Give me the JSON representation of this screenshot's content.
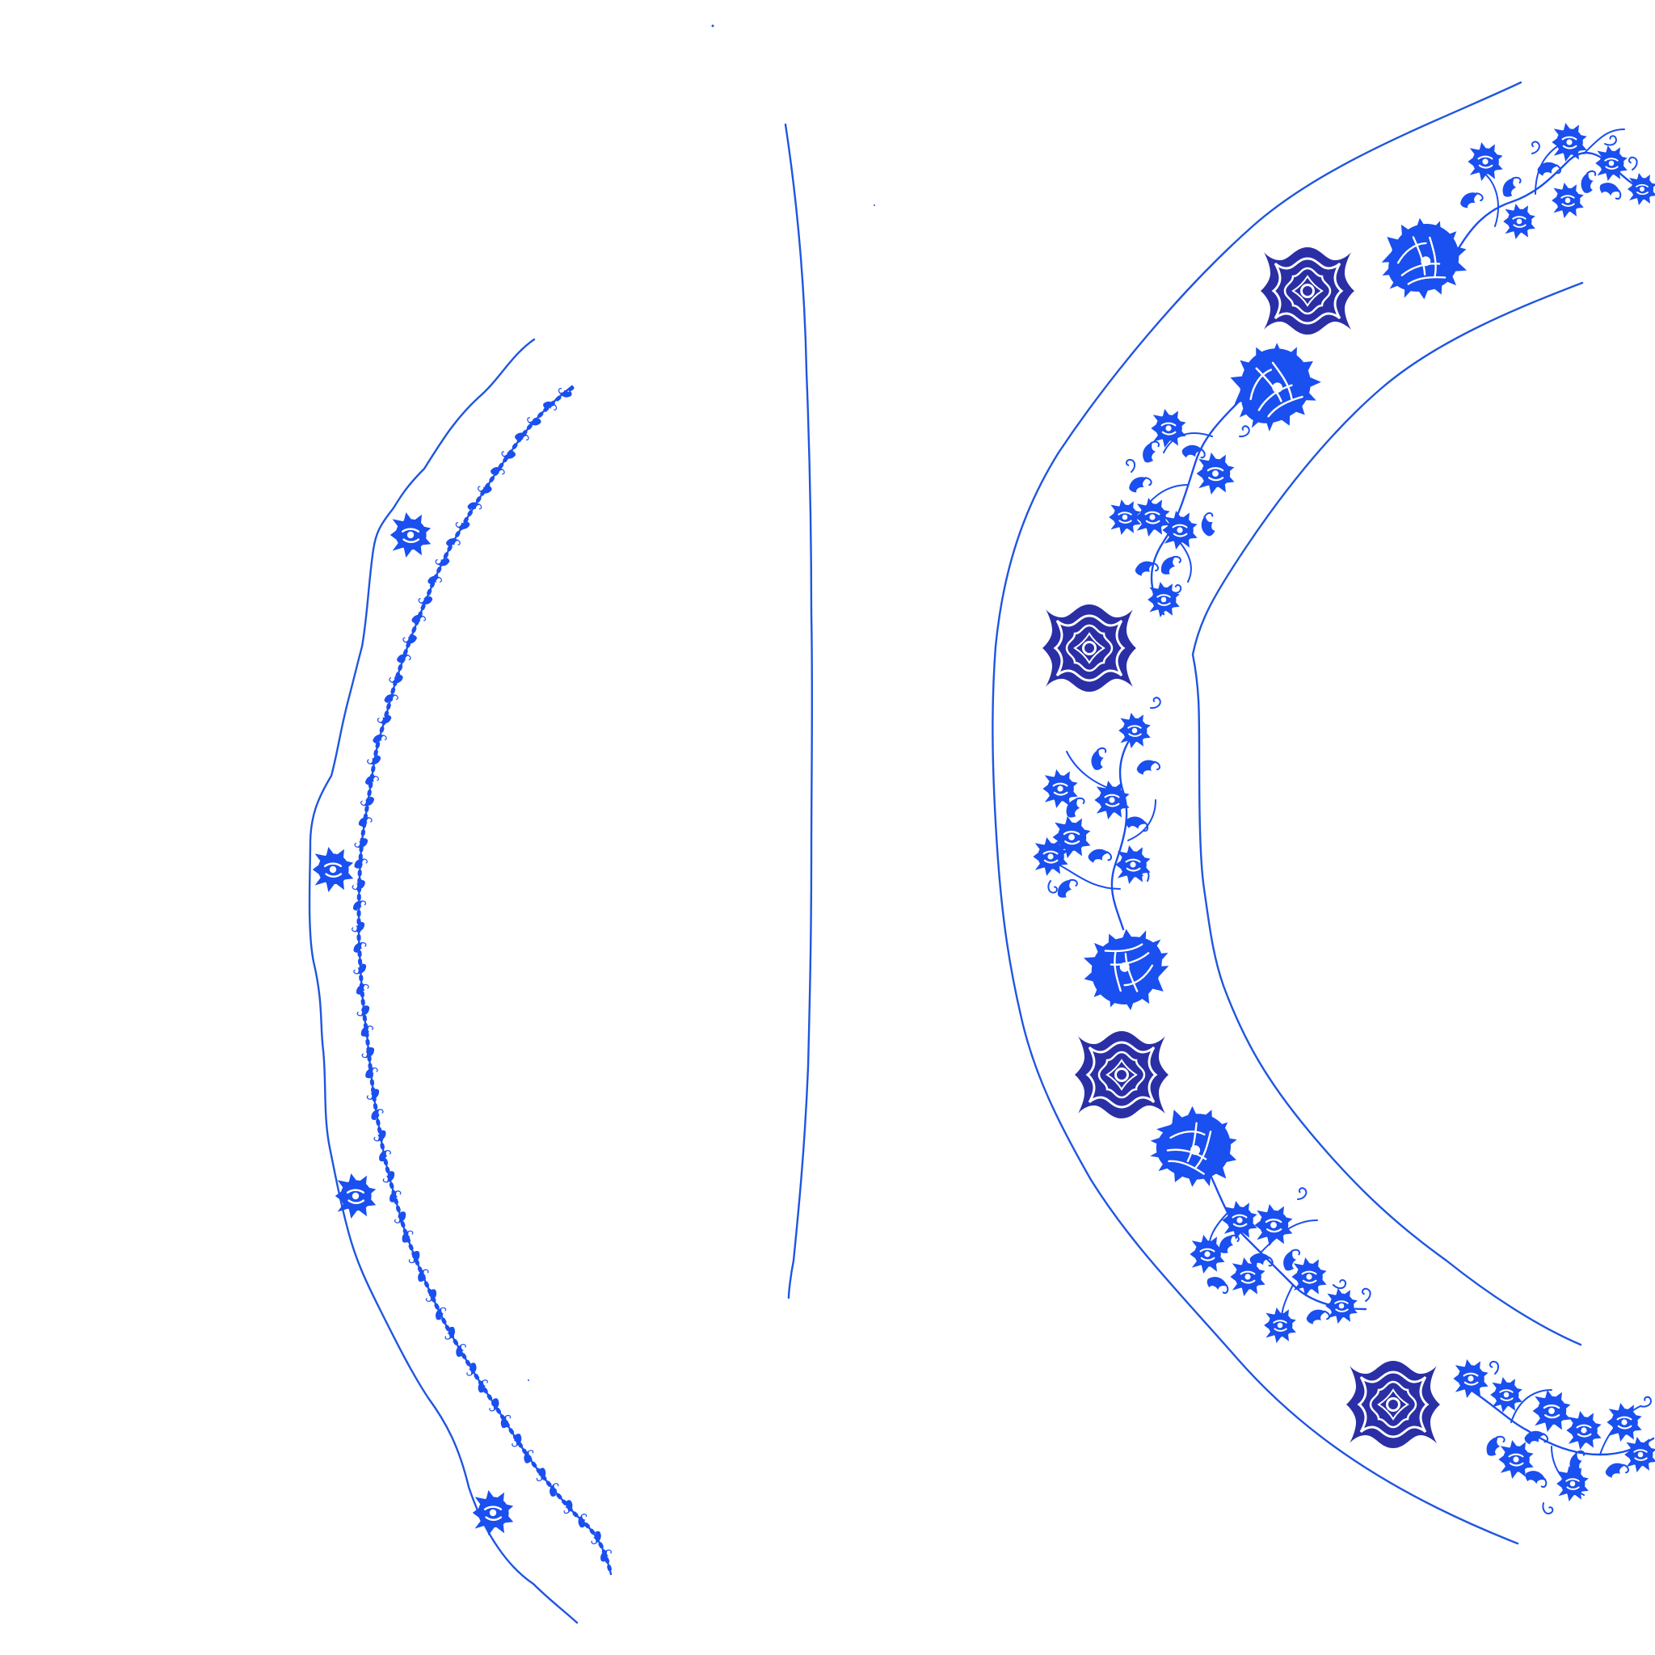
{
  "colors": {
    "background": "#ffffff",
    "line": "#1f56e0",
    "motif_bright": "#1a4ff0",
    "medallion": "#2a2fa6"
  },
  "panels": [
    {
      "name": "rim-border-narrow",
      "motifs": [
        "small-lotus-flower",
        "trailing-scroll-vine"
      ]
    },
    {
      "name": "side-profile-line"
    },
    {
      "name": "rim-border-wide",
      "motifs": [
        "quatrefoil-lotus-medallion",
        "peony-scroll-spray"
      ]
    }
  ]
}
